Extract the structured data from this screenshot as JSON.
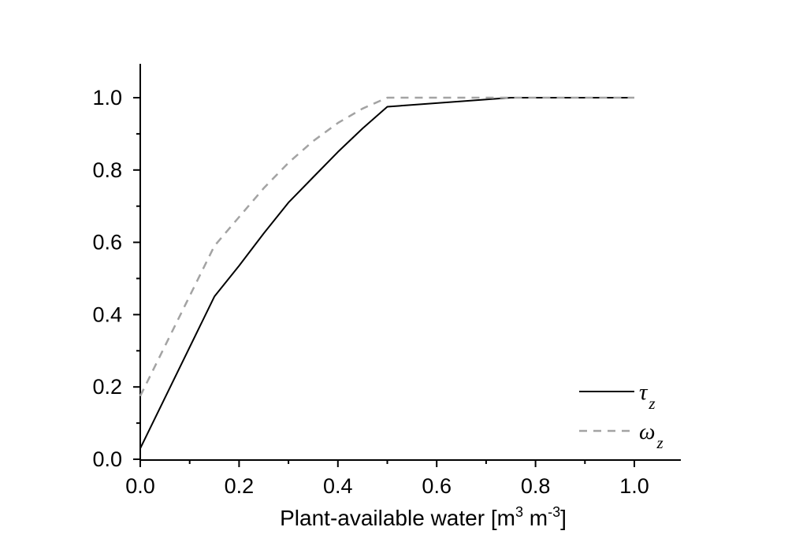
{
  "chart_data": {
    "type": "line",
    "title": "",
    "xlabel": "Plant-available water [m³ m⁻³]",
    "xlabel_parts": [
      {
        "text": "Plant-available water [m",
        "sup": false
      },
      {
        "text": "3",
        "sup": true
      },
      {
        "text": " m",
        "sup": false
      },
      {
        "text": "-3",
        "sup": true
      },
      {
        "text": "]",
        "sup": false
      }
    ],
    "ylabel": "",
    "xlim": [
      0,
      1.09
    ],
    "ylim": [
      0,
      1.09
    ],
    "grid": false,
    "legend_position": "bottom-right",
    "x_ticks": {
      "major": [
        0.0,
        0.2,
        0.4,
        0.6,
        0.8,
        1.0
      ],
      "labels": [
        "0.0",
        "0.2",
        "0.4",
        "0.6",
        "0.8",
        "1.0"
      ],
      "minor": [
        0.1,
        0.3,
        0.5,
        0.7,
        0.9
      ]
    },
    "y_ticks": {
      "major": [
        0.0,
        0.2,
        0.4,
        0.6,
        0.8,
        1.0
      ],
      "labels": [
        "0.0",
        "0.2",
        "0.4",
        "0.6",
        "0.8",
        "1.0"
      ],
      "minor": [
        0.1,
        0.3,
        0.5,
        0.7,
        0.9
      ]
    },
    "axis_color": "#000000",
    "tick_label_color": "#000000",
    "series": [
      {
        "name": "tau_z",
        "legend_symbol": "τ",
        "legend_subscript": "z",
        "line_style": "solid",
        "color": "#000000",
        "points": [
          [
            0,
            0.03
          ],
          [
            0.15,
            0.45
          ],
          [
            0.2,
            0.535
          ],
          [
            0.25,
            0.625
          ],
          [
            0.3,
            0.71
          ],
          [
            0.35,
            0.78
          ],
          [
            0.4,
            0.85
          ],
          [
            0.45,
            0.915
          ],
          [
            0.5,
            0.975
          ],
          [
            0.75,
            1.0
          ],
          [
            1.0,
            1.0
          ]
        ]
      },
      {
        "name": "omega_z",
        "legend_symbol": "ω",
        "legend_subscript": "z",
        "line_style": "dashed",
        "color": "#a3a3a3",
        "points": [
          [
            0,
            0.175
          ],
          [
            0.15,
            0.59
          ],
          [
            0.2,
            0.67
          ],
          [
            0.25,
            0.75
          ],
          [
            0.3,
            0.82
          ],
          [
            0.35,
            0.88
          ],
          [
            0.4,
            0.93
          ],
          [
            0.45,
            0.97
          ],
          [
            0.5,
            1.0
          ],
          [
            0.75,
            1.0
          ],
          [
            1.0,
            1.0
          ]
        ]
      }
    ]
  }
}
